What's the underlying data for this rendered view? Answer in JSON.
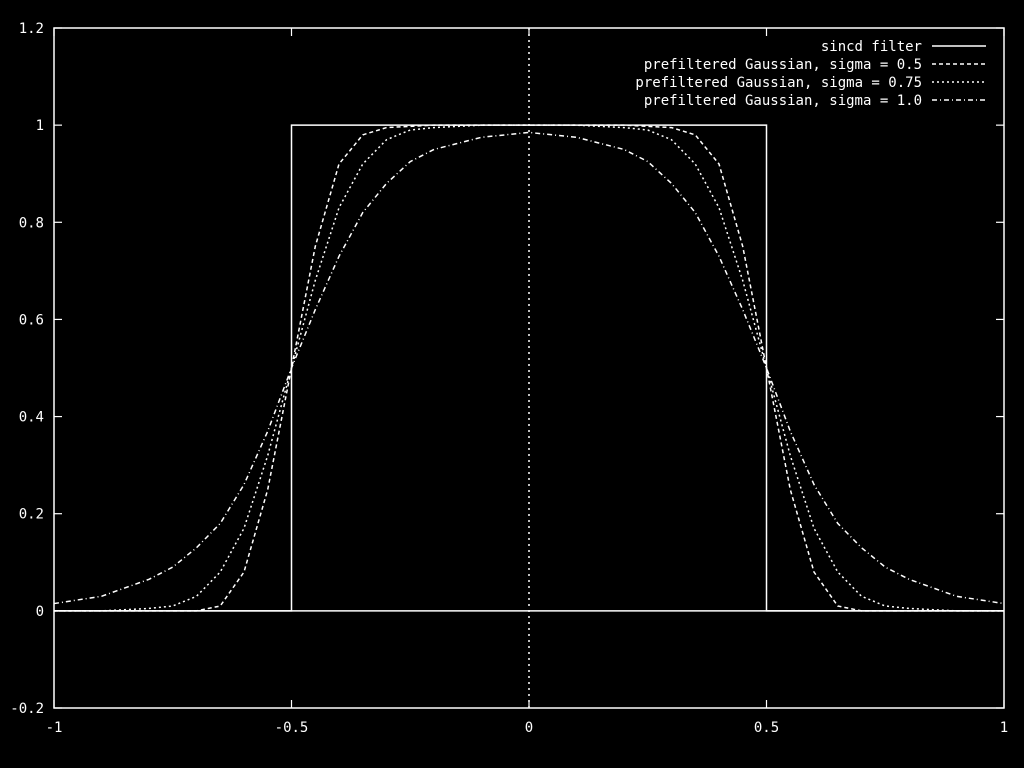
{
  "chart_data": {
    "type": "line",
    "title": "",
    "xlabel": "",
    "ylabel": "",
    "xlim": [
      -1,
      1
    ],
    "ylim": [
      -0.2,
      1.2
    ],
    "x_ticks": [
      {
        "value": -1,
        "label": "-1"
      },
      {
        "value": -0.5,
        "label": "-0.5"
      },
      {
        "value": 0,
        "label": "0"
      },
      {
        "value": 0.5,
        "label": "0.5"
      },
      {
        "value": 1,
        "label": "1"
      }
    ],
    "y_ticks": [
      {
        "value": -0.2,
        "label": "-0.2"
      },
      {
        "value": 0,
        "label": "0"
      },
      {
        "value": 0.2,
        "label": "0.2"
      },
      {
        "value": 0.4,
        "label": "0.4"
      },
      {
        "value": 0.6,
        "label": "0.6"
      },
      {
        "value": 0.8,
        "label": "0.8"
      },
      {
        "value": 1,
        "label": "1"
      },
      {
        "value": 1.2,
        "label": "1.2"
      }
    ],
    "grid": false,
    "legend_position": "top-right",
    "colors": {
      "background": "#000000",
      "foreground": "#ffffff"
    },
    "series": [
      {
        "name": "sincd filter",
        "dash": "solid",
        "x": [
          -1,
          -0.5,
          -0.5,
          0.5,
          0.5,
          1
        ],
        "y": [
          0,
          0,
          1,
          1,
          0,
          0
        ]
      },
      {
        "name": "prefiltered Gaussian, sigma = 0.5",
        "dash": "dashed",
        "x": [
          -1,
          -0.9,
          -0.8,
          -0.75,
          -0.7,
          -0.65,
          -0.6,
          -0.55,
          -0.5,
          -0.45,
          -0.4,
          -0.35,
          -0.3,
          -0.2,
          -0.1,
          0,
          0.1,
          0.2,
          0.3,
          0.35,
          0.4,
          0.45,
          0.5,
          0.55,
          0.6,
          0.65,
          0.7,
          0.75,
          0.8,
          0.9,
          1
        ],
        "y": [
          0.0,
          0.0,
          0.0,
          0.0,
          0.0,
          0.01,
          0.08,
          0.25,
          0.5,
          0.75,
          0.92,
          0.98,
          0.995,
          1.0,
          1.0,
          1.0,
          1.0,
          1.0,
          0.995,
          0.98,
          0.92,
          0.75,
          0.5,
          0.25,
          0.08,
          0.01,
          0.0,
          0.0,
          0.0,
          0.0,
          0.0
        ]
      },
      {
        "name": "prefiltered Gaussian, sigma = 0.75",
        "dash": "dotted",
        "x": [
          -1,
          -0.9,
          -0.8,
          -0.75,
          -0.7,
          -0.65,
          -0.6,
          -0.55,
          -0.5,
          -0.45,
          -0.4,
          -0.35,
          -0.3,
          -0.25,
          -0.2,
          -0.1,
          0,
          0.1,
          0.2,
          0.25,
          0.3,
          0.35,
          0.4,
          0.45,
          0.5,
          0.55,
          0.6,
          0.65,
          0.7,
          0.75,
          0.8,
          0.9,
          1
        ],
        "y": [
          0.0,
          0.0,
          0.005,
          0.01,
          0.03,
          0.08,
          0.17,
          0.32,
          0.5,
          0.68,
          0.83,
          0.92,
          0.97,
          0.99,
          0.995,
          1.0,
          1.0,
          1.0,
          0.995,
          0.99,
          0.97,
          0.92,
          0.83,
          0.68,
          0.5,
          0.32,
          0.17,
          0.08,
          0.03,
          0.01,
          0.005,
          0.0,
          0.0
        ]
      },
      {
        "name": "prefiltered Gaussian, sigma = 1.0",
        "dash": "dashdot",
        "x": [
          -1,
          -0.9,
          -0.8,
          -0.75,
          -0.7,
          -0.65,
          -0.6,
          -0.55,
          -0.5,
          -0.45,
          -0.4,
          -0.35,
          -0.3,
          -0.25,
          -0.2,
          -0.1,
          0,
          0.1,
          0.2,
          0.25,
          0.3,
          0.35,
          0.4,
          0.45,
          0.5,
          0.55,
          0.6,
          0.65,
          0.7,
          0.75,
          0.8,
          0.9,
          1
        ],
        "y": [
          0.015,
          0.03,
          0.065,
          0.09,
          0.13,
          0.18,
          0.26,
          0.37,
          0.5,
          0.62,
          0.73,
          0.82,
          0.88,
          0.925,
          0.95,
          0.975,
          0.985,
          0.975,
          0.95,
          0.925,
          0.88,
          0.82,
          0.73,
          0.62,
          0.5,
          0.37,
          0.26,
          0.18,
          0.13,
          0.09,
          0.065,
          0.03,
          0.015
        ]
      }
    ]
  }
}
